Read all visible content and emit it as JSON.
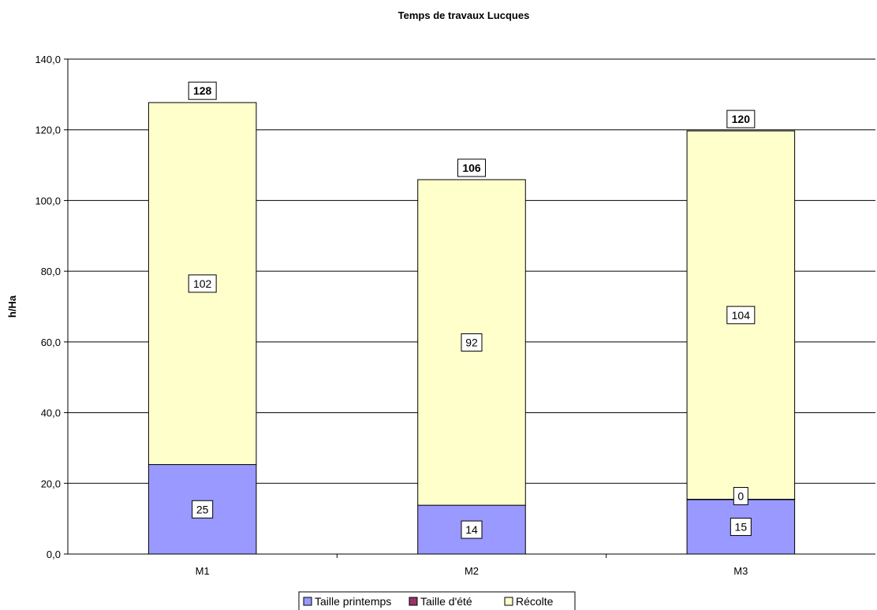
{
  "chart_data": {
    "type": "bar",
    "stacked": true,
    "title": "Temps de travaux Lucques",
    "ylabel": "h/Ha",
    "xlabel": "",
    "ylim": [
      0,
      140
    ],
    "ytick_step": 20,
    "ytick_format": "0,0",
    "grid": true,
    "legend_position": "bottom",
    "categories": [
      "M1",
      "M2",
      "M3"
    ],
    "series": [
      {
        "name": "Taille printemps",
        "color": "#9999ff",
        "values": [
          25.3,
          13.8,
          15.4
        ],
        "labels": [
          "25",
          "14",
          "15"
        ]
      },
      {
        "name": "Taille d'été",
        "color": "#993366",
        "values": [
          0,
          0,
          0.1
        ],
        "labels": [
          "",
          "",
          "0"
        ]
      },
      {
        "name": "Récolte",
        "color": "#ffffcc",
        "values": [
          102.4,
          92.1,
          104.2
        ],
        "labels": [
          "102",
          "92",
          "104"
        ]
      }
    ],
    "totals": [
      "128",
      "106",
      "120"
    ]
  }
}
